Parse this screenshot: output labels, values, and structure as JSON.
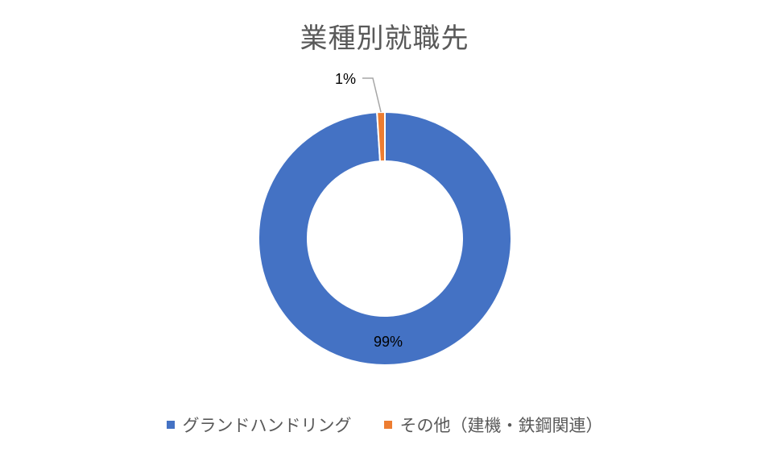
{
  "chart_data": {
    "type": "pie",
    "title": "業種別就職先",
    "categories": [
      "グランドハンドリング",
      "その他（建機・鉄鋼関連）"
    ],
    "values": [
      99,
      1
    ],
    "data_labels": [
      "99%",
      "1%"
    ],
    "colors": [
      "#4472c4",
      "#ed7d31"
    ],
    "legend": "bottom"
  }
}
